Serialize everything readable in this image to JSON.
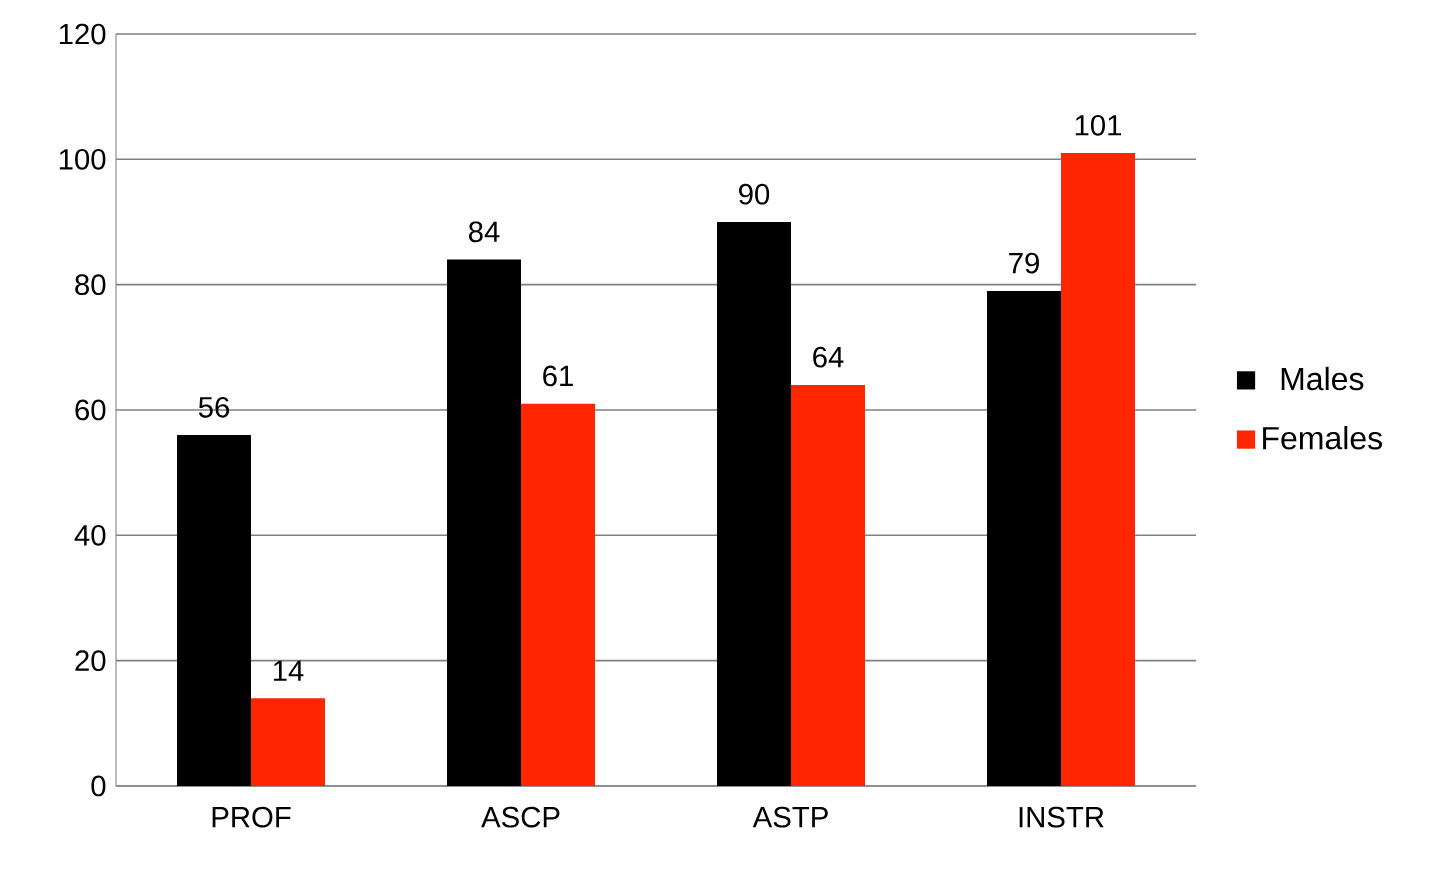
{
  "chart_data": {
    "type": "bar",
    "categories": [
      "PROF",
      "ASCP",
      "ASTP",
      "INSTR"
    ],
    "series": [
      {
        "name": "Males",
        "color": "#000000",
        "values": [
          56,
          84,
          90,
          79
        ]
      },
      {
        "name": "Females",
        "color": "#ff2600",
        "values": [
          14,
          61,
          64,
          101
        ]
      }
    ],
    "ylim": [
      0,
      120
    ],
    "yticks": [
      0,
      20,
      40,
      60,
      80,
      100,
      120
    ],
    "grid": "y",
    "legend": "right",
    "data_labels": true
  }
}
